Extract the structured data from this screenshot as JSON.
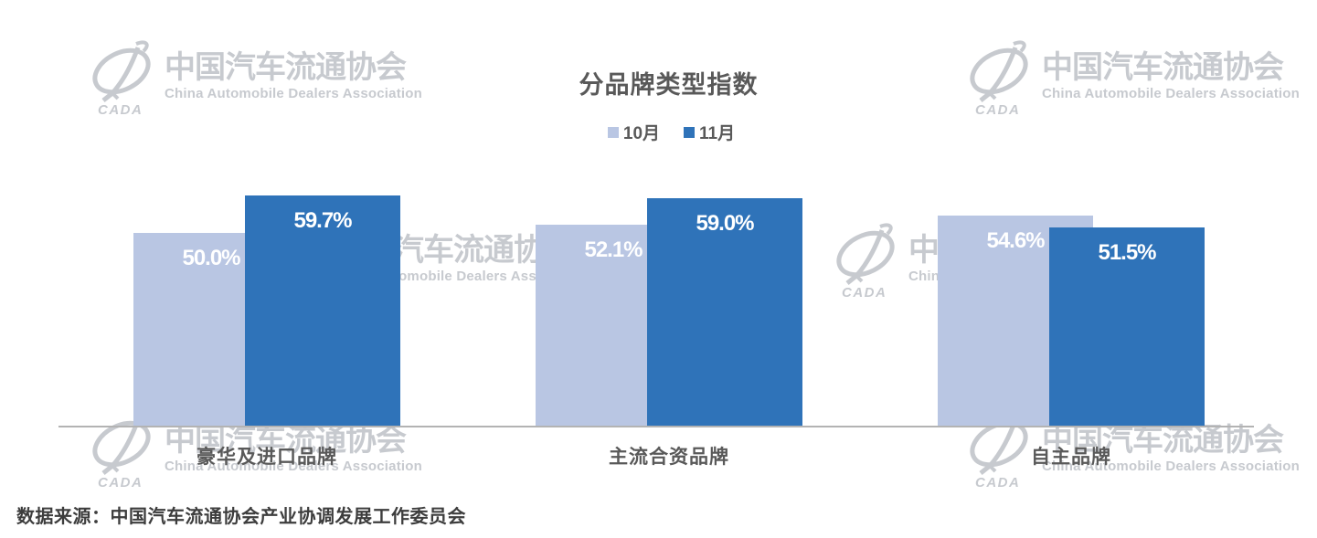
{
  "chart_data": {
    "type": "bar",
    "title": "分品牌类型指数",
    "categories": [
      "豪华及进口品牌",
      "主流合资品牌",
      "自主品牌"
    ],
    "series": [
      {
        "name": "10月",
        "color": "#B9C6E3",
        "values": [
          50.0,
          52.1,
          54.6
        ],
        "labels": [
          "50.0%",
          "52.1%",
          "54.6%"
        ]
      },
      {
        "name": "11月",
        "color": "#2F73B9",
        "values": [
          59.7,
          59.0,
          51.5
        ],
        "labels": [
          "59.7%",
          "59.0%",
          "51.5%"
        ]
      }
    ],
    "ylim": [
      0,
      70
    ],
    "grid": false,
    "value_axis_visible": false,
    "legend_position": "top-center",
    "data_labels_position": "inside-top",
    "bar_overlap": true
  },
  "watermark": {
    "cn": "中国汽车流通协会",
    "en": "China Automobile Dealers Association",
    "logo_text": "CADA",
    "color": "#C7CACF"
  },
  "source_note": "数据来源：中国汽车流通协会产业协调发展工作委员会",
  "colors": {
    "background": "#FFFFFF",
    "series_oct": "#B9C6E3",
    "series_nov": "#2F73B9",
    "heading_text": "#595959",
    "bar_label_text": "#FFFFFF",
    "axis_line": "#B3B3B3",
    "source_text": "#3D3D3D"
  }
}
